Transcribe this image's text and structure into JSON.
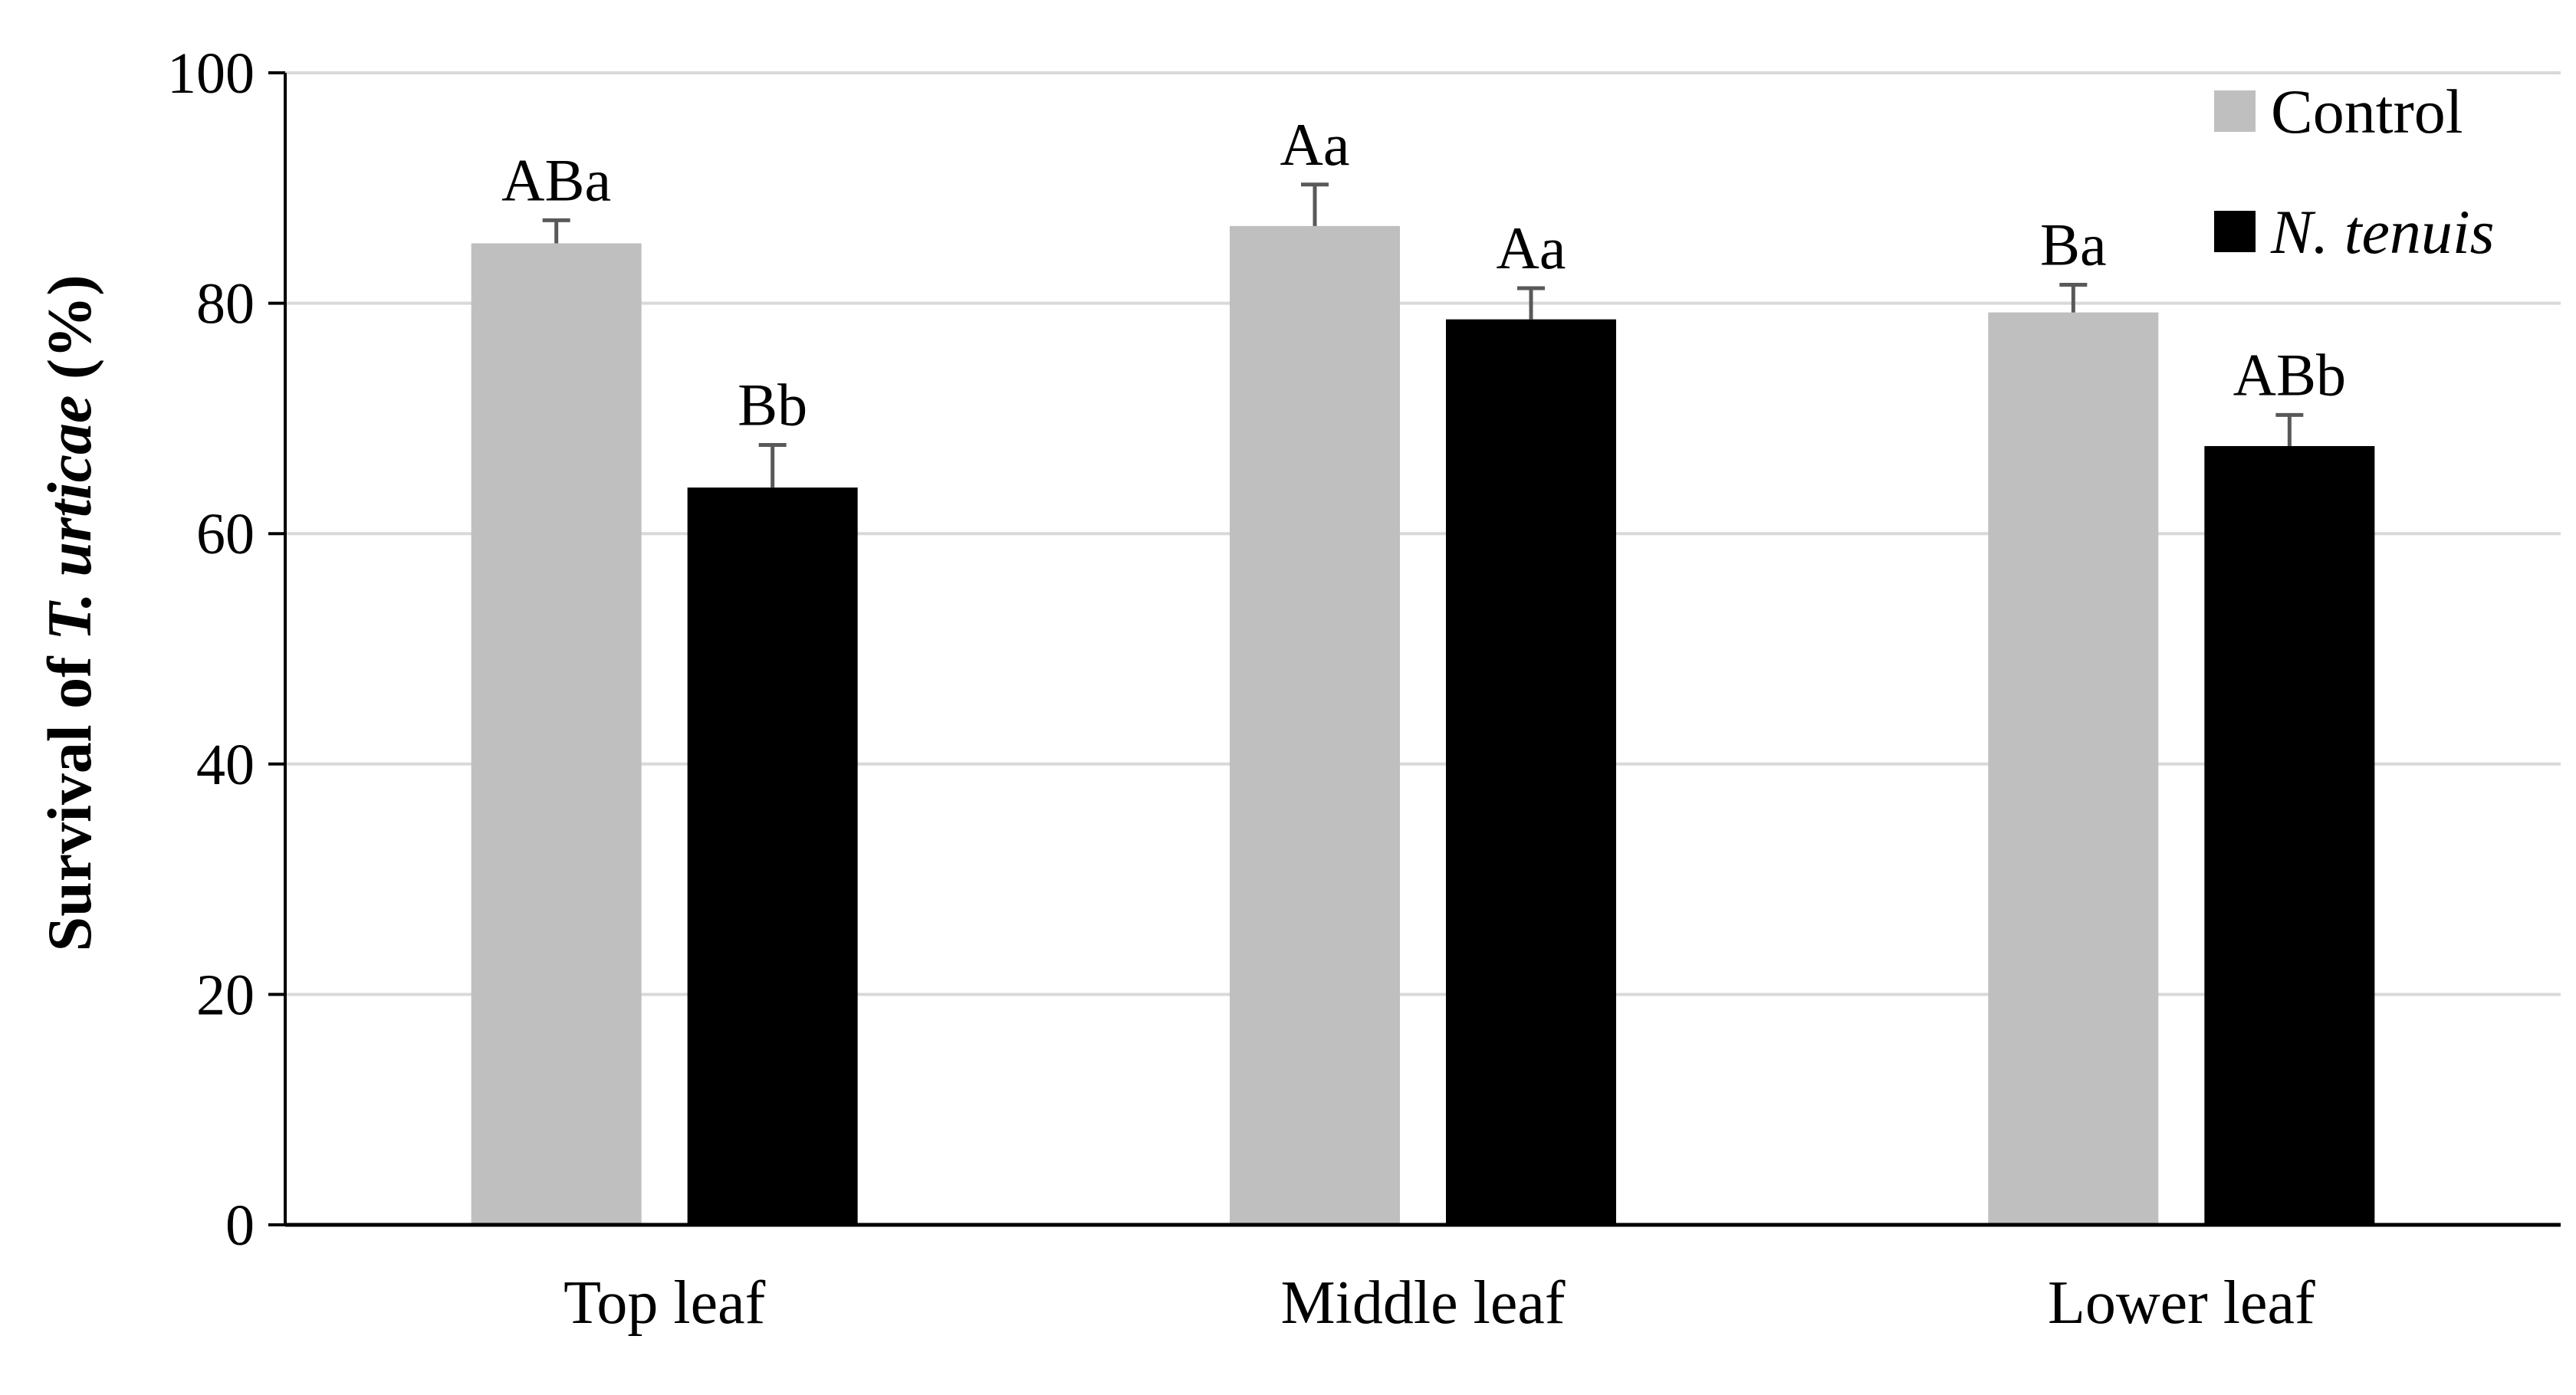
{
  "chart_data": {
    "type": "bar",
    "categories": [
      "Top leaf",
      "Middle leaf",
      "Lower leaf"
    ],
    "series": [
      {
        "name": "Control",
        "color": "#bfbfbf",
        "values": [
          85.2,
          86.7,
          79.2
        ],
        "errors": [
          2.0,
          3.6,
          2.4
        ],
        "labels": [
          "ABa",
          "Aa",
          "Ba"
        ]
      },
      {
        "name": "N. tenuis",
        "name_italic": true,
        "color": "#000000",
        "values": [
          64.0,
          78.6,
          67.6
        ],
        "errors": [
          3.7,
          2.7,
          2.7
        ],
        "labels": [
          "Bb",
          "Aa",
          "ABb"
        ]
      }
    ],
    "ylabel": {
      "prefix": "Survival of ",
      "italic": "T. urticae",
      "suffix": " (%)"
    },
    "yticks": [
      0,
      20,
      40,
      60,
      80,
      100
    ],
    "ylim": [
      0,
      100
    ],
    "grid": true,
    "legend_position": "top-right",
    "colors": {
      "grid": "#d9d9d9",
      "axis": "#000000",
      "error_bar": "#595959"
    }
  }
}
